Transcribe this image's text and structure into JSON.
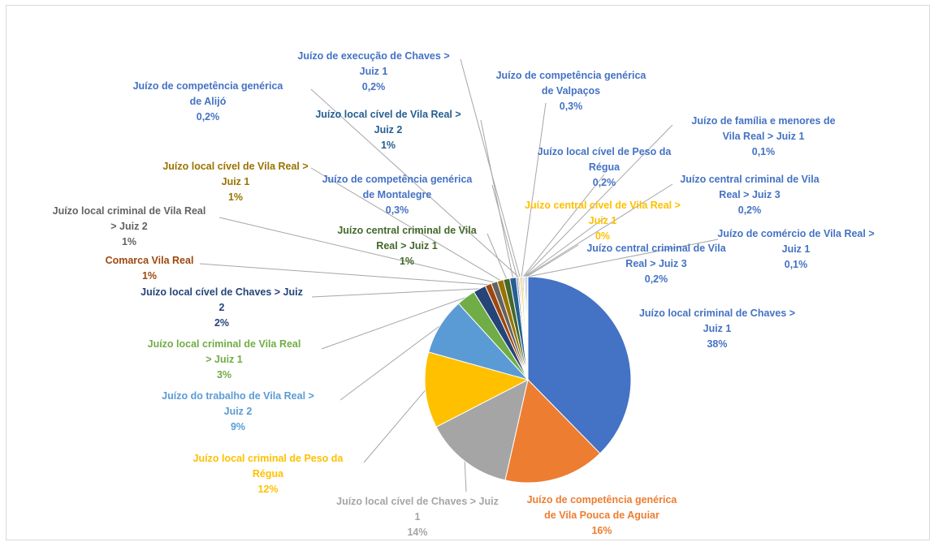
{
  "chart_data": {
    "type": "pie",
    "title": "",
    "slices": [
      {
        "label_lines": [
          "Juízo local criminal de Chaves >",
          "Juiz 1"
        ],
        "value_label": "38%",
        "value": 38,
        "color": "#4472C4"
      },
      {
        "label_lines": [
          "Juízo de competência genérica",
          "de Vila Pouca de Aguiar"
        ],
        "value_label": "16%",
        "value": 16,
        "color": "#ED7D31"
      },
      {
        "label_lines": [
          "Juízo local cível de Chaves > Juiz",
          "1"
        ],
        "value_label": "14%",
        "value": 14,
        "color": "#A5A5A5"
      },
      {
        "label_lines": [
          "Juízo local criminal de Peso da",
          "Régua"
        ],
        "value_label": "12%",
        "value": 12,
        "color": "#FFC000"
      },
      {
        "label_lines": [
          "Juízo do trabalho de Vila Real >",
          "Juiz 2"
        ],
        "value_label": "9%",
        "value": 9,
        "color": "#5B9BD5"
      },
      {
        "label_lines": [
          "Juízo local criminal de Vila Real",
          "> Juiz 1"
        ],
        "value_label": "3%",
        "value": 3,
        "color": "#70AD47"
      },
      {
        "label_lines": [
          "Juízo local cível de Chaves > Juiz",
          "2"
        ],
        "value_label": "2%",
        "value": 2,
        "color": "#264478"
      },
      {
        "label_lines": [
          "Comarca Vila Real"
        ],
        "value_label": "1%",
        "value": 1,
        "color": "#9E480E"
      },
      {
        "label_lines": [
          "Juízo local criminal de Vila Real",
          "> Juiz 2"
        ],
        "value_label": "1%",
        "value": 1,
        "color": "#636363"
      },
      {
        "label_lines": [
          "Juízo local cível de Vila Real >",
          "Juiz 1"
        ],
        "value_label": "1%",
        "value": 1,
        "color": "#997300"
      },
      {
        "label_lines": [
          "Juízo central criminal de Vila",
          "Real > Juiz 1"
        ],
        "value_label": "1%",
        "value": 1,
        "color": "#43682B"
      },
      {
        "label_lines": [
          "Juízo local cível de Vila Real >",
          "Juiz 2"
        ],
        "value_label": "1%",
        "value": 1,
        "color": "#255E91"
      },
      {
        "label_lines": [
          "Juízo de competência genérica",
          "de Montalegre"
        ],
        "value_label": "0,3%",
        "value": 0.3,
        "color": "#698ED0"
      },
      {
        "label_lines": [
          "Juízo de competência genérica",
          "de Alijó"
        ],
        "value_label": "0,2%",
        "value": 0.2,
        "color": "#F1975A"
      },
      {
        "label_lines": [
          "Juízo de execução de Chaves >",
          "Juiz 1"
        ],
        "value_label": "0,2%",
        "value": 0.2,
        "color": "#B7B7B7"
      },
      {
        "label_lines": [
          "Juízo de competência genérica",
          "de Valpaços"
        ],
        "value_label": "0,3%",
        "value": 0.3,
        "color": "#FFCD33"
      },
      {
        "label_lines": [
          "Juízo local cível de Peso da",
          "Régua"
        ],
        "value_label": "0,2%",
        "value": 0.2,
        "color": "#7CAFDD"
      },
      {
        "label_lines": [
          "Juízo de família e menores de",
          "Vila Real > Juiz 1"
        ],
        "value_label": "0,1%",
        "value": 0.1,
        "color": "#8CC168"
      },
      {
        "label_lines": [
          "Juízo central cível de Vila Real >",
          "Juiz 1"
        ],
        "value_label": "0%",
        "value": 0.05,
        "color": "#FFC000"
      },
      {
        "label_lines": [
          "Juízo central criminal de Vila",
          "Real > Juiz 3"
        ],
        "value_label": "0,2%",
        "value": 0.2,
        "color": "#4472C4"
      },
      {
        "label_lines": [
          "Juízo central criminal de Vila",
          "Real > Juiz 3"
        ],
        "value_label": "0,2%",
        "value": 0.2,
        "color": "#4472C4"
      },
      {
        "label_lines": [
          "Juízo de comércio de Vila Real >",
          "Juiz 1"
        ],
        "value_label": "0,1%",
        "value": 0.1,
        "color": "#4472C4"
      }
    ],
    "label_colors": {
      "Juízo local criminal de Chaves": "#4472C4"
    },
    "legend": "none",
    "data_labels": "outside with leader lines"
  }
}
